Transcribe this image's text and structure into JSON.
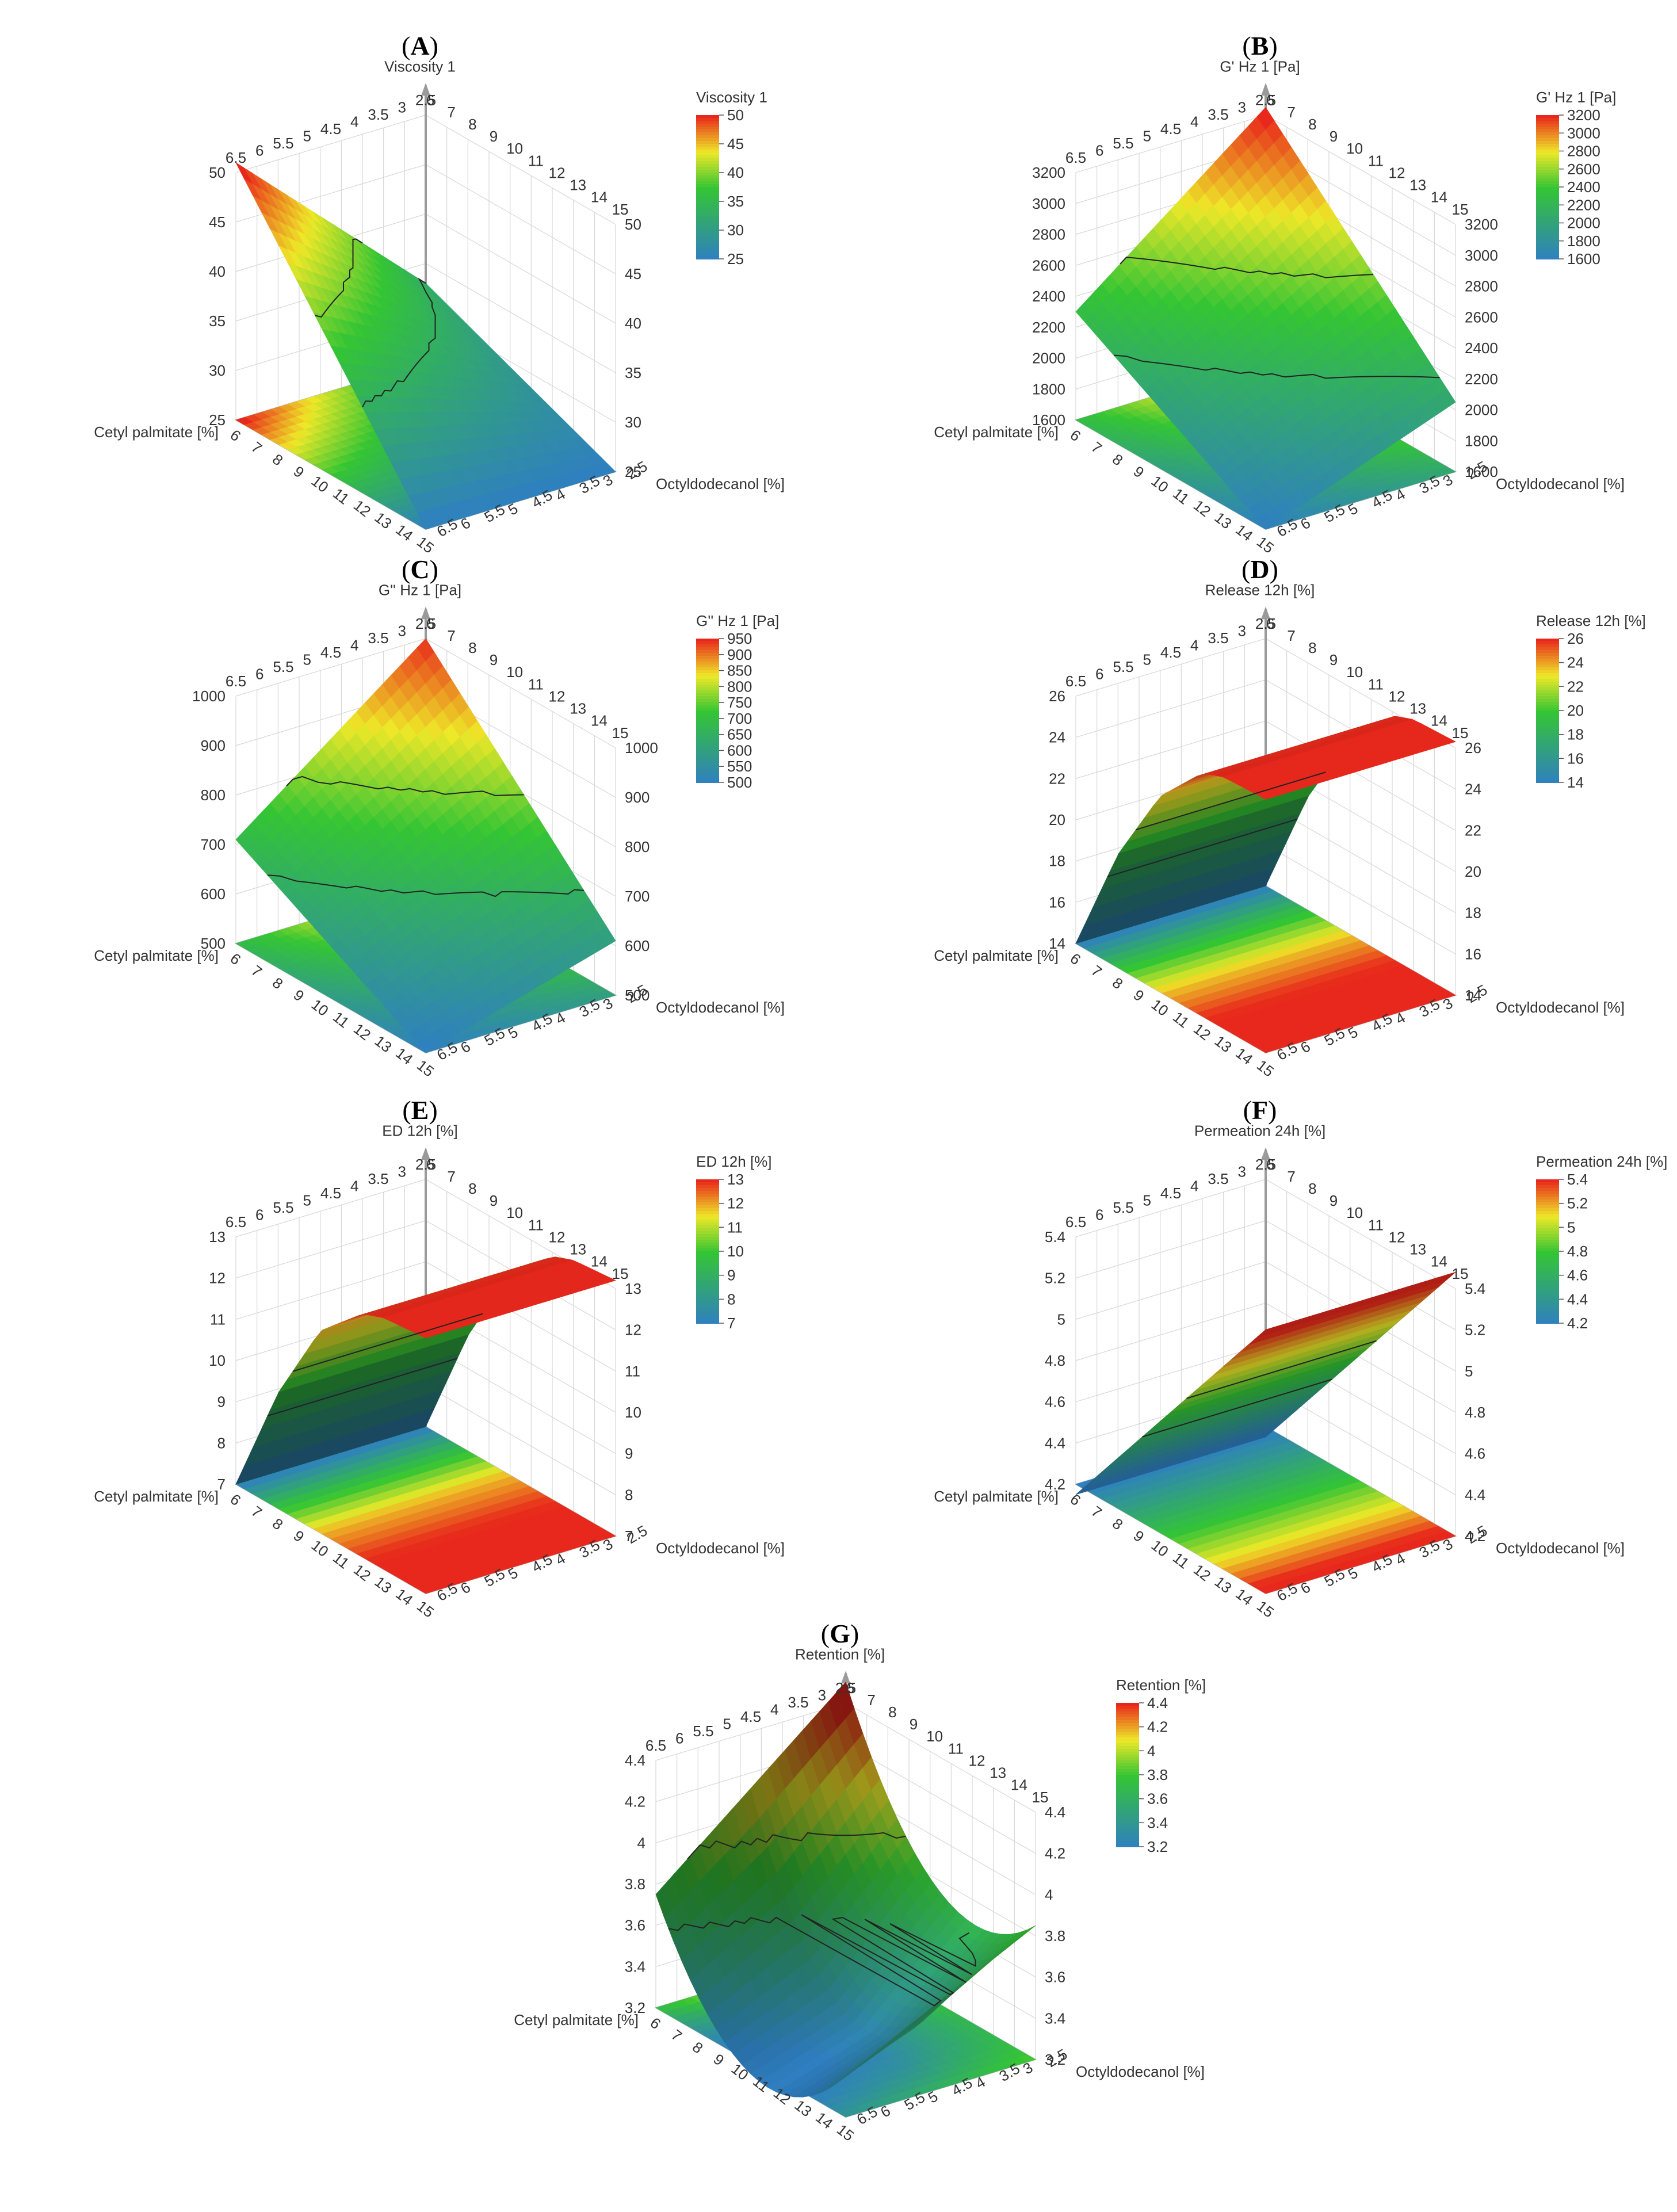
{
  "figure": {
    "x_axis_label": "Cetyl palmitate [%]",
    "y_axis_label": "Octyldodecanol [%]",
    "x_ticks": [
      "6",
      "7",
      "8",
      "9",
      "10",
      "11",
      "12",
      "13",
      "14",
      "15"
    ],
    "y_ticks": [
      "2.5",
      "3",
      "3.5",
      "4",
      "4.5",
      "5",
      "5.5",
      "6",
      "6.5"
    ],
    "back_x_ticks": [
      "6",
      "7",
      "8",
      "9",
      "10",
      "11",
      "12",
      "13",
      "14",
      "15"
    ],
    "back_y_ticks": [
      "6.5",
      "6",
      "5.5",
      "5",
      "4.5",
      "4",
      "3.5",
      "3",
      "2.5"
    ]
  },
  "colors": {
    "low": "#2f7fc1",
    "mid": "#34c534",
    "high": "#e8281c"
  },
  "chart_data": [
    {
      "panel": "A",
      "letter": "A",
      "type": "surface3d",
      "title": "Viscosity 1",
      "colorbar_title": "Viscosity 1",
      "zlim": [
        25,
        50
      ],
      "z_ticks": [
        "25",
        "30",
        "35",
        "40",
        "45",
        "50"
      ],
      "colorbar_ticks": [
        "25",
        "30",
        "35",
        "40",
        "45",
        "50"
      ],
      "x": [
        6,
        15
      ],
      "y": [
        2.5,
        6.5
      ],
      "corner_values": {
        "x6_y2.5": 33,
        "x15_y2.5": 25,
        "x6_y6.5": 51,
        "x15_y6.5": 25
      }
    },
    {
      "panel": "B",
      "letter": "B",
      "type": "surface3d",
      "title": "G' Hz 1 [Pa]",
      "colorbar_title": "G' Hz 1 [Pa]",
      "zlim": [
        1600,
        3200
      ],
      "z_ticks": [
        "1600",
        "1800",
        "2000",
        "2200",
        "2400",
        "2600",
        "2800",
        "3000",
        "3200"
      ],
      "colorbar_ticks": [
        "1600",
        "1800",
        "2000",
        "2200",
        "2400",
        "2600",
        "2800",
        "3000",
        "3200"
      ],
      "x": [
        6,
        15
      ],
      "y": [
        2.5,
        6.5
      ],
      "corner_values": {
        "x6_y2.5": 3250,
        "x15_y2.5": 2050,
        "x6_y6.5": 2300,
        "x15_y6.5": 1600
      }
    },
    {
      "panel": "C",
      "letter": "C",
      "type": "surface3d",
      "title": "G'' Hz 1 [Pa]",
      "colorbar_title": "G'' Hz 1 [Pa]",
      "zlim": [
        500,
        1000
      ],
      "z_ticks": [
        "500",
        "600",
        "700",
        "800",
        "900",
        "1000"
      ],
      "colorbar_ticks": [
        "500",
        "550",
        "600",
        "650",
        "700",
        "750",
        "800",
        "850",
        "900",
        "950"
      ],
      "x": [
        6,
        15
      ],
      "y": [
        2.5,
        6.5
      ],
      "corner_values": {
        "x6_y2.5": 1000,
        "x15_y2.5": 610,
        "x6_y6.5": 710,
        "x15_y6.5": 500
      }
    },
    {
      "panel": "D",
      "letter": "D",
      "type": "surface3d",
      "title": "Release 12h [%]",
      "colorbar_title": "Release 12h [%]",
      "zlim": [
        14,
        26
      ],
      "z_ticks": [
        "14",
        "16",
        "18",
        "20",
        "22",
        "24",
        "26"
      ],
      "colorbar_ticks": [
        "14",
        "16",
        "18",
        "20",
        "22",
        "24",
        "26"
      ],
      "x": [
        6,
        15
      ],
      "y": [
        2.5,
        6.5
      ],
      "profile_x": [
        6,
        8,
        10,
        12,
        13,
        15
      ],
      "profile_z": [
        14,
        19.5,
        23.5,
        25.8,
        26.2,
        26.3
      ]
    },
    {
      "panel": "E",
      "letter": "E",
      "type": "surface3d",
      "title": "ED 12h [%]",
      "colorbar_title": "ED 12h [%]",
      "zlim": [
        7,
        13
      ],
      "z_ticks": [
        "7",
        "8",
        "9",
        "10",
        "11",
        "12",
        "13"
      ],
      "colorbar_ticks": [
        "7",
        "8",
        "9",
        "10",
        "11",
        "12",
        "13"
      ],
      "x": [
        6,
        15
      ],
      "y": [
        2.5,
        6.5
      ],
      "profile_x": [
        6,
        8,
        10,
        12,
        13,
        15
      ],
      "profile_z": [
        7,
        9.8,
        11.9,
        12.9,
        13.1,
        13.2
      ]
    },
    {
      "panel": "F",
      "letter": "F",
      "type": "surface3d",
      "title": "Permeation 24h [%]",
      "colorbar_title": "Permeation 24h [%]",
      "zlim": [
        4.2,
        5.4
      ],
      "z_ticks": [
        "4.2",
        "4.4",
        "4.6",
        "4.8",
        "5",
        "5.2",
        "5.4"
      ],
      "colorbar_ticks": [
        "4.2",
        "4.4",
        "4.6",
        "4.8",
        "5",
        "5.2",
        "5.4"
      ],
      "x": [
        6,
        15
      ],
      "y": [
        2.5,
        6.5
      ],
      "profile_x": [
        6,
        15
      ],
      "profile_z": [
        4.15,
        5.48
      ]
    },
    {
      "panel": "G",
      "letter": "G",
      "type": "surface3d",
      "title": "Retention [%]",
      "colorbar_title": "Retention [%]",
      "zlim": [
        3.2,
        4.4
      ],
      "z_ticks": [
        "3.2",
        "3.4",
        "3.6",
        "3.8",
        "4",
        "4.2",
        "4.4"
      ],
      "colorbar_ticks": [
        "3.2",
        "3.4",
        "3.6",
        "3.8",
        "4",
        "4.2",
        "4.4"
      ],
      "x": [
        6,
        15
      ],
      "y": [
        2.5,
        6.5
      ],
      "corner_values": {
        "x6_y2.5": 4.5,
        "x15_y2.5": 3.85,
        "x6_y6.5": 3.75,
        "x15_y6.5": 3.4,
        "center": 3.3
      }
    }
  ]
}
